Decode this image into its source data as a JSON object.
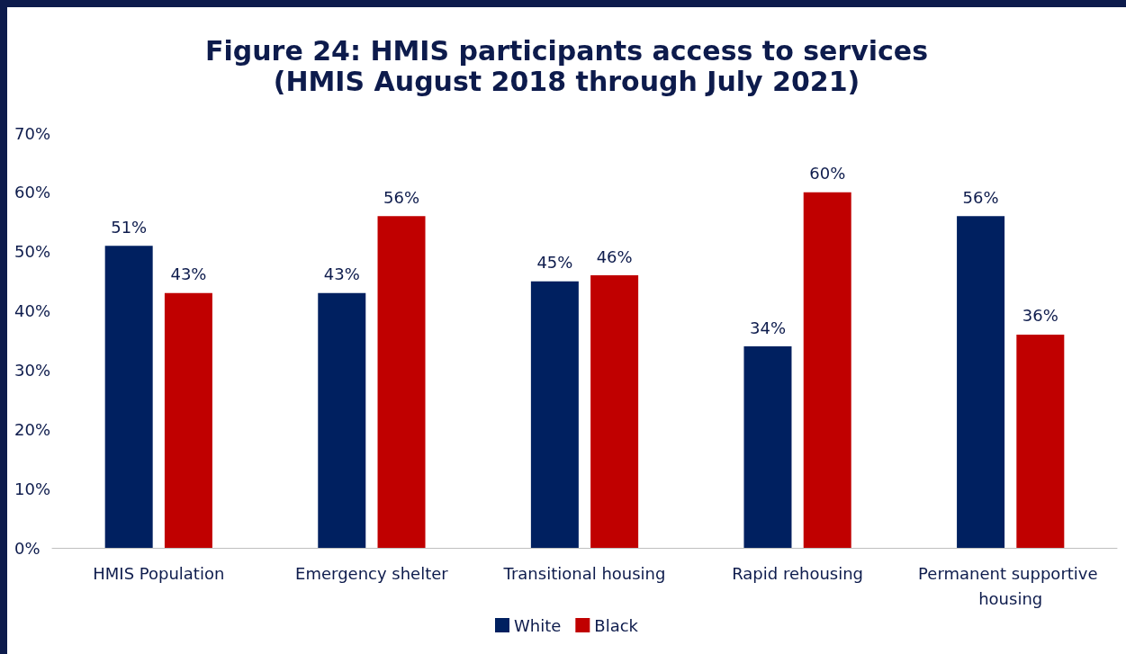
{
  "chart_data": {
    "type": "bar",
    "title": "Figure 24: HMIS participants access to services",
    "subtitle": "(HMIS August 2018 through July 2021)",
    "categories": [
      "HMIS Population",
      "Emergency shelter",
      "Transitional housing",
      "Rapid rehousing",
      "Permanent supportive housing"
    ],
    "series": [
      {
        "name": "White",
        "color": "#002060",
        "values": [
          51,
          43,
          45,
          34,
          56
        ],
        "value_labels": [
          "51%",
          "43%",
          "45%",
          "34%",
          "56%"
        ]
      },
      {
        "name": "Black",
        "color": "#c00000",
        "values": [
          43,
          56,
          46,
          60,
          36
        ],
        "value_labels": [
          "43%",
          "56%",
          "46%",
          "60%",
          "36%"
        ]
      }
    ],
    "ylim": [
      0,
      70
    ],
    "yticks": [
      {
        "value": 0,
        "label": "0%"
      },
      {
        "value": 10,
        "label": "10%"
      },
      {
        "value": 20,
        "label": "20%"
      },
      {
        "value": 30,
        "label": "30%"
      },
      {
        "value": 40,
        "label": "40%"
      },
      {
        "value": 50,
        "label": "50%"
      },
      {
        "value": 60,
        "label": "60%"
      },
      {
        "value": 70,
        "label": "70%"
      }
    ],
    "grid": false,
    "legend": "bottom"
  }
}
